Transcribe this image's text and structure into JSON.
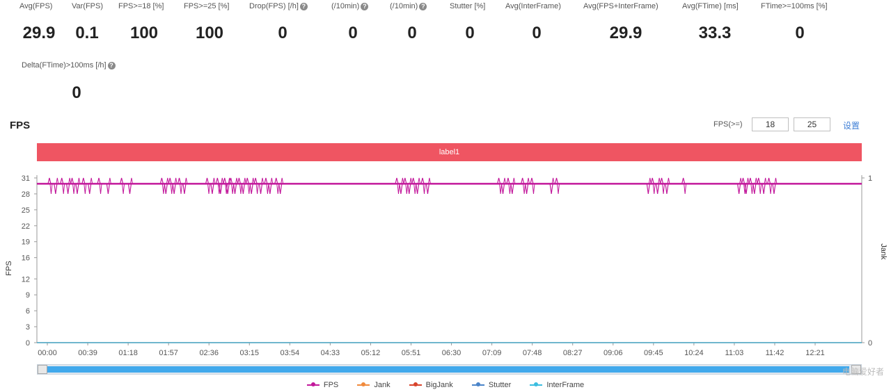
{
  "metrics_row1": [
    {
      "label": "Avg(FPS)",
      "value": "29.9",
      "info": false
    },
    {
      "label": "Var(FPS)",
      "value": "0.1",
      "info": false
    },
    {
      "label": "FPS>=18 [%]",
      "value": "100",
      "info": false
    },
    {
      "label": "FPS>=25 [%]",
      "value": "100",
      "info": false
    },
    {
      "label": "Drop(FPS) [/h]",
      "value": "0",
      "info": true
    },
    {
      "label": "(/10min)",
      "value": "0",
      "info": true
    },
    {
      "label": "(/10min)",
      "value": "0",
      "info": true
    },
    {
      "label": "Stutter [%]",
      "value": "0",
      "info": false
    },
    {
      "label": "Avg(InterFrame)",
      "value": "0",
      "info": false
    },
    {
      "label": "Avg(FPS+InterFrame)",
      "value": "29.9",
      "info": false
    },
    {
      "label": "Avg(FTime) [ms]",
      "value": "33.3",
      "info": false
    },
    {
      "label": "FTime>=100ms [%]",
      "value": "0",
      "info": false
    }
  ],
  "metrics_row2": {
    "label": "Delta(FTime)>100ms [/h]",
    "value": "0",
    "info": true
  },
  "section_title": "FPS",
  "fps_threshold": {
    "label": "FPS(>=)",
    "low": "18",
    "high": "25",
    "settings_label": "设置"
  },
  "label_bar": {
    "text": "label1",
    "color": "#ef5562"
  },
  "icons": {
    "info": "info-icon"
  },
  "chart_data": {
    "type": "line",
    "title": "",
    "xlabel": "",
    "ylabel": "FPS",
    "y2label": "Jank",
    "ylim": [
      0,
      31
    ],
    "y2lim": [
      0,
      1
    ],
    "yticks": [
      0,
      3,
      6,
      9,
      12,
      16,
      19,
      22,
      25,
      28,
      31
    ],
    "y2ticks": [
      0,
      1
    ],
    "xticks": [
      "00:00",
      "00:39",
      "01:18",
      "01:57",
      "02:36",
      "03:15",
      "03:54",
      "04:33",
      "05:12",
      "05:51",
      "06:30",
      "07:09",
      "07:48",
      "08:27",
      "09:06",
      "09:45",
      "10:24",
      "11:03",
      "11:42",
      "12:21"
    ],
    "x_range_seconds": [
      0,
      780
    ],
    "fps_baseline": 29.9,
    "fps_spike_high": 31,
    "fps_spike_low": 28,
    "fps_spike_times_seconds": [
      2,
      8,
      14,
      20,
      24,
      29,
      35,
      41,
      50,
      59,
      72,
      80,
      111,
      115,
      119,
      123,
      128,
      133,
      155,
      160,
      165,
      168,
      172,
      175,
      178,
      182,
      186,
      190,
      194,
      198,
      202,
      207,
      212,
      216,
      222,
      226,
      339,
      343,
      347,
      351,
      355,
      359,
      364,
      369,
      438,
      442,
      447,
      451,
      461,
      465,
      470,
      489,
      494,
      583,
      587,
      592,
      596,
      601,
      617,
      671,
      675,
      678,
      682,
      686,
      690,
      695,
      700,
      705
    ],
    "series": [
      {
        "name": "FPS",
        "color": "#c2189b",
        "value": 29.9
      },
      {
        "name": "Jank",
        "color": "#f08a3c",
        "value": 0
      },
      {
        "name": "BigJank",
        "color": "#d8432b",
        "value": 0
      },
      {
        "name": "Stutter",
        "color": "#4a84c9",
        "value": 0
      },
      {
        "name": "InterFrame",
        "color": "#3bbde0",
        "value": 0
      }
    ],
    "grid": false,
    "legend": "bottom"
  },
  "watermark": "电脑爱好者"
}
